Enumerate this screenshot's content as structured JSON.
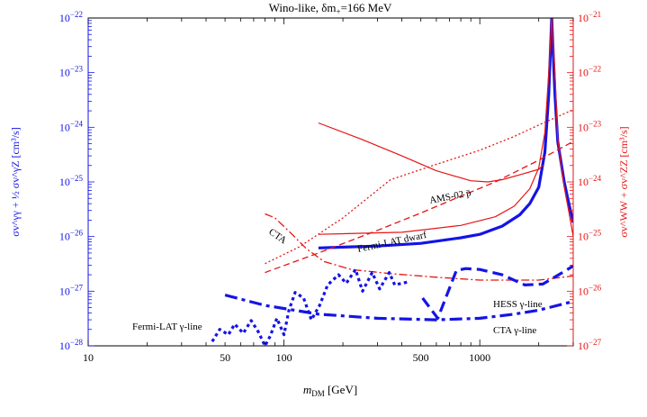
{
  "chart_data": {
    "type": "line",
    "title_main": "Wino-like, δm",
    "title_sub": "+",
    "title_rest": "=166 MeV",
    "xlabel_main": "m",
    "xlabel_sub": "DM",
    "xlabel_rest": " [GeV]",
    "ylabel_left": "σv^γγ + ½ σv^γZ [cm³/s]",
    "ylabel_right": "σv^WW + σv^ZZ [cm³/s]",
    "xscale": "log",
    "xlim": [
      10,
      3000
    ],
    "ylim_left": [
      1e-28,
      1e-22
    ],
    "ylim_right": [
      1e-27,
      1e-21
    ],
    "x_major_ticks": [
      10,
      100,
      1000
    ],
    "x_tick_labels": [
      {
        "v": 10,
        "label": "10"
      },
      {
        "v": 50,
        "label": "50"
      },
      {
        "v": 100,
        "label": "100"
      },
      {
        "v": 500,
        "label": "500"
      },
      {
        "v": 1000,
        "label": "1000"
      }
    ],
    "left_tick_exponents": [
      -28,
      -27,
      -26,
      -25,
      -24,
      -23,
      -22
    ],
    "right_tick_exponents": [
      -27,
      -26,
      -25,
      -24,
      -23,
      -22,
      -21
    ],
    "tick_base": "10",
    "annotations": {
      "ams": "AMS-02 p̄",
      "fermi_dwarf": "Fermi-LAT dwarf",
      "cta": "CTA",
      "hess_line": "HESS γ-line",
      "cta_line": "CTA γ-line",
      "fermi_line": "Fermi-LAT γ-line"
    },
    "series": [
      {
        "name": "Wino gamma-line cross section (left axis)",
        "axis": "left",
        "color": "#1414e6",
        "style": "solid-thick",
        "points": [
          [
            150,
            6.2e-27
          ],
          [
            200,
            6.4e-27
          ],
          [
            300,
            6.7e-27
          ],
          [
            500,
            7.5e-27
          ],
          [
            800,
            9.5e-27
          ],
          [
            1000,
            1.1e-26
          ],
          [
            1300,
            1.55e-26
          ],
          [
            1600,
            2.5e-26
          ],
          [
            1800,
            4e-26
          ],
          [
            2000,
            8e-26
          ],
          [
            2150,
            3.5e-25
          ],
          [
            2250,
            4e-24
          ],
          [
            2330,
            1e-22
          ],
          [
            2420,
            4e-24
          ],
          [
            2500,
            5.5e-25
          ],
          [
            2700,
            1e-25
          ],
          [
            2850,
            4e-26
          ],
          [
            3000,
            1.8e-26
          ]
        ]
      },
      {
        "name": "Wino WW+ZZ cross section (right axis)",
        "axis": "right",
        "color": "#e61414",
        "style": "solid-thin",
        "points": [
          [
            150,
            1.1e-25
          ],
          [
            400,
            1.2e-25
          ],
          [
            800,
            1.6e-25
          ],
          [
            1200,
            2.3e-25
          ],
          [
            1500,
            3.6e-25
          ],
          [
            1800,
            7.5e-25
          ],
          [
            2000,
            1.8e-24
          ],
          [
            2150,
            8e-24
          ],
          [
            2250,
            1e-22
          ],
          [
            2330,
            1e-21
          ],
          [
            2420,
            1e-22
          ],
          [
            2500,
            6e-24
          ],
          [
            2700,
            8e-25
          ],
          [
            2850,
            2.8e-25
          ],
          [
            3000,
            1e-25
          ]
        ]
      },
      {
        "name": "Fermi-LAT dwarf limit (right axis)",
        "axis": "right",
        "color": "#e61414",
        "style": "solid-thin",
        "points": [
          [
            150,
            1.2e-23
          ],
          [
            250,
            6e-24
          ],
          [
            400,
            3e-24
          ],
          [
            600,
            1.6e-24
          ],
          [
            900,
            1.05e-24
          ],
          [
            1100,
            1e-24
          ],
          [
            1300,
            1.1e-24
          ],
          [
            1600,
            1.35e-24
          ],
          [
            2000,
            1.7e-24
          ],
          [
            2100,
            2e-24
          ]
        ]
      },
      {
        "name": "AMS-02 antiproton limit (right axis)",
        "axis": "right",
        "color": "#e61414",
        "style": "dotted",
        "points": [
          [
            80,
            3.2e-26
          ],
          [
            120,
            6.5e-26
          ],
          [
            200,
            2.2e-25
          ],
          [
            350,
            1.1e-24
          ],
          [
            600,
            2.1e-24
          ],
          [
            1000,
            3.8e-24
          ],
          [
            1500,
            6.8e-24
          ],
          [
            2000,
            1.1e-23
          ],
          [
            3000,
            2.1e-23
          ]
        ]
      },
      {
        "name": "Fermi-LAT dwarf projection (right axis)",
        "axis": "right",
        "color": "#e61414",
        "style": "dashed",
        "points": [
          [
            80,
            2.2e-26
          ],
          [
            150,
            5e-26
          ],
          [
            300,
            1.3e-25
          ],
          [
            500,
            2.7e-25
          ],
          [
            800,
            5.5e-25
          ],
          [
            1200,
            1e-24
          ],
          [
            2000,
            2.5e-24
          ],
          [
            3000,
            5.5e-24
          ]
        ]
      },
      {
        "name": "CTA continuum projection (right axis)",
        "axis": "right",
        "color": "#e61414",
        "style": "dash-dot",
        "points": [
          [
            80,
            2.6e-25
          ],
          [
            90,
            2.2e-25
          ],
          [
            110,
            1.1e-25
          ],
          [
            130,
            6e-26
          ],
          [
            160,
            3.5e-26
          ],
          [
            220,
            2.5e-26
          ],
          [
            350,
            2.1e-26
          ],
          [
            600,
            1.8e-26
          ],
          [
            1000,
            1.6e-26
          ],
          [
            2000,
            1.6e-26
          ],
          [
            3000,
            1.9e-26
          ]
        ]
      },
      {
        "name": "HESS gamma-line limit (left axis)",
        "axis": "left",
        "color": "#1414e6",
        "style": "dashed-thick",
        "points": [
          [
            510,
            7.5e-28
          ],
          [
            610,
            3.2e-28
          ],
          [
            760,
            2.4e-27
          ],
          [
            850,
            2.6e-27
          ],
          [
            1000,
            2.5e-27
          ],
          [
            1300,
            2e-27
          ],
          [
            1700,
            1.3e-27
          ],
          [
            2100,
            1.35e-27
          ],
          [
            2700,
            2.3e-27
          ],
          [
            3000,
            2.9e-27
          ]
        ]
      },
      {
        "name": "CTA gamma-line projection (left axis)",
        "axis": "left",
        "color": "#1414e6",
        "style": "dash-dot-thick",
        "points": [
          [
            50,
            8.5e-28
          ],
          [
            80,
            5.5e-28
          ],
          [
            150,
            3.8e-28
          ],
          [
            300,
            3.2e-28
          ],
          [
            600,
            3e-28
          ],
          [
            1000,
            3.2e-28
          ],
          [
            1500,
            3.8e-28
          ],
          [
            2000,
            4.5e-28
          ],
          [
            3000,
            6.5e-28
          ]
        ]
      },
      {
        "name": "Fermi-LAT gamma-line limit (left axis)",
        "axis": "left",
        "color": "#1414e6",
        "style": "dotted-thick",
        "points": [
          [
            43,
            1.2e-28
          ],
          [
            47,
            2e-28
          ],
          [
            52,
            1.6e-28
          ],
          [
            56,
            2.5e-28
          ],
          [
            62,
            1.7e-28
          ],
          [
            68,
            2.9e-28
          ],
          [
            74,
            1.8e-28
          ],
          [
            80,
            1e-28
          ],
          [
            85,
            1.5e-28
          ],
          [
            92,
            3.2e-28
          ],
          [
            100,
            1.6e-28
          ],
          [
            106,
            4.5e-28
          ],
          [
            114,
            9.5e-28
          ],
          [
            126,
            7.5e-28
          ],
          [
            138,
            3e-28
          ],
          [
            152,
            5.5e-28
          ],
          [
            167,
            1.3e-27
          ],
          [
            190,
            2e-27
          ],
          [
            208,
            1.4e-27
          ],
          [
            232,
            2.5e-27
          ],
          [
            252,
            1e-27
          ],
          [
            282,
            2.2e-27
          ],
          [
            308,
            1.1e-27
          ],
          [
            345,
            2.2e-27
          ],
          [
            368,
            1.3e-27
          ],
          [
            400,
            1.4e-27
          ],
          [
            440,
            1.5e-27
          ]
        ]
      }
    ]
  }
}
